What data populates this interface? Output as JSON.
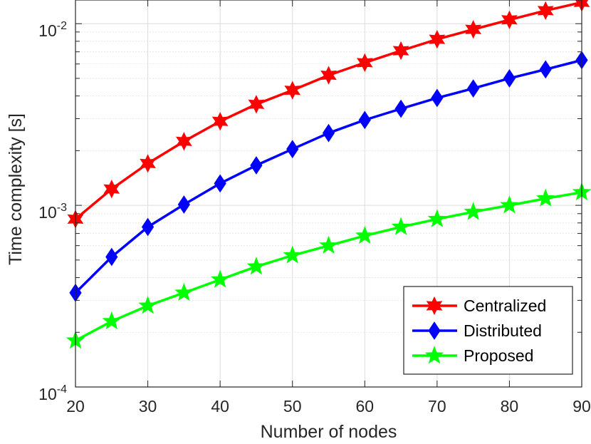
{
  "chart_data": {
    "type": "line",
    "xlabel": "Number of nodes",
    "ylabel": "Time complexity [s]",
    "x": [
      20,
      25,
      30,
      35,
      40,
      45,
      50,
      55,
      60,
      65,
      70,
      75,
      80,
      85,
      90
    ],
    "xlim": [
      20,
      90
    ],
    "xticks": [
      "20",
      "30",
      "40",
      "50",
      "60",
      "70",
      "80",
      "90"
    ],
    "yscale": "log",
    "ylim": [
      0.0001,
      0.0135
    ],
    "ytick_values": [
      0.0001,
      0.001,
      0.01
    ],
    "ytick_exponents": [
      "-4",
      "-3",
      "-2"
    ],
    "ytick_base": "10",
    "grid": true,
    "legend_position": "bottom-right",
    "series": [
      {
        "name": "Centralized",
        "color": "#ff0000",
        "marker": "hexagram",
        "values": [
          0.00084,
          0.00123,
          0.0017,
          0.00225,
          0.0029,
          0.0036,
          0.0043,
          0.0052,
          0.0061,
          0.0071,
          0.0082,
          0.0093,
          0.0105,
          0.0118,
          0.0131
        ]
      },
      {
        "name": "Distributed",
        "color": "#0000ff",
        "marker": "diamond",
        "values": [
          0.00033,
          0.00052,
          0.00076,
          0.00101,
          0.00132,
          0.00166,
          0.00204,
          0.0025,
          0.00295,
          0.0034,
          0.0039,
          0.0044,
          0.005,
          0.0056,
          0.0063
        ]
      },
      {
        "name": "Proposed",
        "color": "#00ff00",
        "marker": "pentagram",
        "values": [
          0.00018,
          0.00023,
          0.00028,
          0.00033,
          0.00039,
          0.00046,
          0.00053,
          0.0006,
          0.00068,
          0.00076,
          0.00084,
          0.00092,
          0.001,
          0.00109,
          0.00118
        ]
      }
    ]
  }
}
